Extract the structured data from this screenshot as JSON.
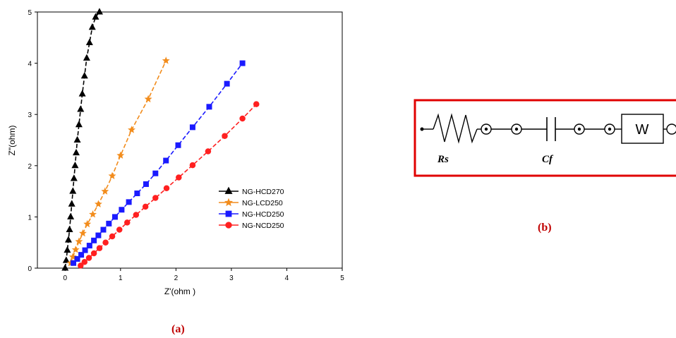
{
  "chart_data": {
    "type": "scatter",
    "xlabel": "Z'(ohm )",
    "ylabel": "Z\"(ohm)",
    "xlim": [
      -0.5,
      5
    ],
    "ylim": [
      0,
      5
    ],
    "xticks": [
      "0",
      "1",
      "2",
      "3",
      "4",
      "5"
    ],
    "yticks": [
      "0",
      "1",
      "2",
      "3",
      "4",
      "5"
    ],
    "legend_position": "lower-right",
    "series": [
      {
        "name": "NG-HCD270",
        "color": "#000000",
        "marker": "triangle",
        "x": [
          0.0,
          0.02,
          0.04,
          0.06,
          0.08,
          0.1,
          0.12,
          0.14,
          0.16,
          0.18,
          0.2,
          0.22,
          0.25,
          0.28,
          0.31,
          0.35,
          0.39,
          0.44,
          0.49,
          0.55,
          0.62
        ],
        "y": [
          0.0,
          0.15,
          0.35,
          0.55,
          0.75,
          1.0,
          1.25,
          1.5,
          1.75,
          2.0,
          2.25,
          2.5,
          2.8,
          3.1,
          3.4,
          3.75,
          4.1,
          4.4,
          4.7,
          4.9,
          5.0
        ]
      },
      {
        "name": "NG-LCD250",
        "color": "#f28c1c",
        "marker": "star",
        "x": [
          0.1,
          0.14,
          0.19,
          0.25,
          0.32,
          0.4,
          0.5,
          0.6,
          0.72,
          0.85,
          1.0,
          1.2,
          1.5,
          1.82
        ],
        "y": [
          0.1,
          0.22,
          0.36,
          0.52,
          0.68,
          0.86,
          1.05,
          1.25,
          1.5,
          1.8,
          2.2,
          2.7,
          3.3,
          4.05
        ]
      },
      {
        "name": "NG-HCD250",
        "color": "#1a1aff",
        "marker": "square",
        "x": [
          0.15,
          0.22,
          0.29,
          0.36,
          0.44,
          0.52,
          0.6,
          0.69,
          0.79,
          0.9,
          1.02,
          1.15,
          1.3,
          1.46,
          1.63,
          1.82,
          2.04,
          2.3,
          2.6,
          2.92,
          3.2
        ],
        "y": [
          0.1,
          0.18,
          0.26,
          0.35,
          0.44,
          0.54,
          0.64,
          0.75,
          0.87,
          1.0,
          1.14,
          1.29,
          1.46,
          1.64,
          1.85,
          2.1,
          2.4,
          2.75,
          3.15,
          3.6,
          4.0
        ]
      },
      {
        "name": "NG-NCD250",
        "color": "#ff2020",
        "marker": "circle",
        "x": [
          0.28,
          0.35,
          0.43,
          0.52,
          0.62,
          0.73,
          0.85,
          0.98,
          1.12,
          1.28,
          1.45,
          1.63,
          1.83,
          2.05,
          2.3,
          2.58,
          2.88,
          3.2,
          3.45
        ],
        "y": [
          0.05,
          0.12,
          0.2,
          0.29,
          0.39,
          0.5,
          0.62,
          0.75,
          0.89,
          1.04,
          1.2,
          1.37,
          1.56,
          1.77,
          2.01,
          2.28,
          2.58,
          2.92,
          3.2
        ]
      }
    ]
  },
  "captions": {
    "a": "(a)",
    "b": "(b)"
  },
  "circuit": {
    "rs_label": "Rs",
    "cf_label": "Cf",
    "w_label": "W",
    "border_color": "#e00000"
  }
}
